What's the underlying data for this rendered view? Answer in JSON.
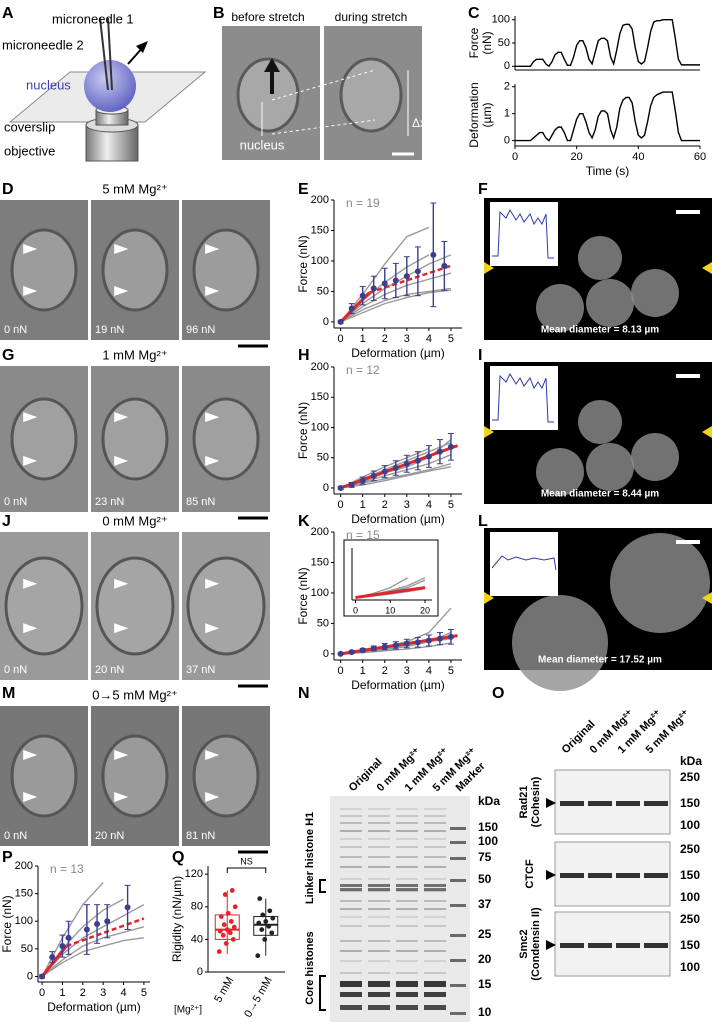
{
  "panel_labels": [
    "A",
    "B",
    "C",
    "D",
    "E",
    "F",
    "G",
    "H",
    "I",
    "J",
    "K",
    "L",
    "M",
    "N",
    "O",
    "P",
    "Q"
  ],
  "diagram_a": {
    "labels": [
      "microneedle 1",
      "microneedle 2",
      "nucleus",
      "coverslip",
      "objective"
    ]
  },
  "images_b": {
    "titles": [
      "before stretch",
      "during stretch"
    ],
    "labels": [
      "nucleus",
      "Δx"
    ]
  },
  "image_rows": [
    {
      "title": "5 mM Mg²⁺",
      "forces": [
        "0 nN",
        "19 nN",
        "96 nN"
      ]
    },
    {
      "title": "1 mM Mg²⁺",
      "forces": [
        "0 nN",
        "23 nN",
        "85 nN"
      ]
    },
    {
      "title": "0 mM Mg²⁺",
      "forces": [
        "0 nN",
        "20 nN",
        "37 nN"
      ]
    },
    {
      "title": "0→5 mM Mg²⁺",
      "forces": [
        "0 nN",
        "20 nN",
        "81 nN"
      ]
    }
  ],
  "confocal": [
    {
      "caption": "Mean diameter = 8.13 µm"
    },
    {
      "caption": "Mean diameter = 8.44 µm"
    },
    {
      "caption": "Mean diameter = 17.52 µm"
    }
  ],
  "chart_data": [
    {
      "type": "line",
      "ylabel_lines": [
        "Force",
        "(nN)"
      ],
      "xlim": [
        0,
        60
      ],
      "ylim": [
        -8,
        108
      ],
      "yticks": [
        0,
        50,
        100
      ],
      "color": "#000000",
      "x": [
        0,
        1,
        2,
        3,
        4,
        5,
        6,
        7,
        8,
        9,
        10,
        11,
        12,
        13,
        14,
        15,
        16,
        17,
        18,
        19,
        20,
        21,
        22,
        23,
        24,
        25,
        26,
        27,
        28,
        29,
        30,
        31,
        32,
        33,
        34,
        35,
        36,
        37,
        38,
        39,
        40,
        41,
        42,
        43,
        44,
        45,
        46,
        47,
        48,
        49,
        50,
        51,
        52,
        53,
        54,
        55,
        56,
        57,
        58,
        59,
        60
      ],
      "values": [
        0,
        0,
        0,
        0,
        0,
        0,
        10,
        15,
        15,
        15,
        5,
        0,
        10,
        25,
        30,
        30,
        15,
        2,
        2,
        20,
        45,
        55,
        55,
        40,
        15,
        5,
        30,
        55,
        60,
        60,
        55,
        20,
        5,
        35,
        70,
        88,
        90,
        90,
        80,
        40,
        10,
        5,
        10,
        40,
        75,
        95,
        98,
        98,
        100,
        100,
        100,
        100,
        60,
        15,
        3,
        3,
        3,
        3,
        3,
        3,
        3
      ]
    },
    {
      "type": "line",
      "ylabel_lines": [
        "Deformation",
        "(µm)"
      ],
      "xlabel": "Time (s)",
      "xlim": [
        0,
        60
      ],
      "ylim": [
        -0.2,
        2.1
      ],
      "yticks": [
        0,
        1,
        2
      ],
      "xticks": [
        0,
        20,
        40,
        60
      ],
      "color": "#000000",
      "x": [
        0,
        1,
        2,
        3,
        4,
        5,
        6,
        7,
        8,
        9,
        10,
        11,
        12,
        13,
        14,
        15,
        16,
        17,
        18,
        19,
        20,
        21,
        22,
        23,
        24,
        25,
        26,
        27,
        28,
        29,
        30,
        31,
        32,
        33,
        34,
        35,
        36,
        37,
        38,
        39,
        40,
        41,
        42,
        43,
        44,
        45,
        46,
        47,
        48,
        49,
        50,
        51,
        52,
        53,
        54,
        55,
        56,
        57,
        58,
        59,
        60
      ],
      "values": [
        0,
        0,
        0,
        0,
        0,
        0,
        0.1,
        0.2,
        0.3,
        0.3,
        0.1,
        0,
        0.2,
        0.4,
        0.5,
        0.5,
        0.3,
        0,
        0,
        0.4,
        0.8,
        1,
        1,
        0.7,
        0.3,
        0.1,
        0.4,
        0.9,
        1.1,
        1.1,
        1,
        0.4,
        0.1,
        0.5,
        1.2,
        1.5,
        1.6,
        1.6,
        1.4,
        0.7,
        0.2,
        0.1,
        0.2,
        0.7,
        1.3,
        1.6,
        1.7,
        1.75,
        1.8,
        1.8,
        1.8,
        1.8,
        1.1,
        0.3,
        0,
        0,
        0,
        0,
        0,
        0,
        0
      ]
    },
    {
      "type": "line",
      "annotation": "n = 19",
      "xlabel": "Deformation (µm)",
      "ylabel": "Force (nN)",
      "xlim": [
        -0.3,
        5.5
      ],
      "ylim": [
        -10,
        200
      ],
      "xticks": [
        0,
        1,
        2,
        3,
        4,
        5
      ],
      "yticks": [
        0,
        50,
        100,
        150,
        200
      ],
      "trace_color": "#9a9a9a",
      "trace_x": [
        0,
        1,
        2,
        3,
        4,
        5
      ],
      "traces": [
        [
          0,
          45,
          95,
          140,
          155,
          null
        ],
        [
          0,
          30,
          55,
          75,
          95,
          110
        ],
        [
          0,
          25,
          45,
          60,
          70,
          80
        ],
        [
          0,
          20,
          35,
          45,
          50,
          55
        ],
        [
          0,
          35,
          65,
          90,
          110,
          null
        ],
        [
          0,
          15,
          30,
          40,
          48,
          52
        ]
      ],
      "color": "#3b3f8c",
      "x": [
        0,
        0.5,
        1,
        1.5,
        2,
        2.5,
        3,
        3.5,
        4.2,
        4.7
      ],
      "values": [
        0,
        22,
        43,
        55,
        63,
        68,
        75,
        83,
        110,
        92
      ],
      "errors": [
        2,
        8,
        15,
        20,
        25,
        28,
        32,
        40,
        85,
        40
      ],
      "fit_color": "#e0252b",
      "fit_solid_x": [
        0,
        1.3
      ],
      "fit_solid_values": [
        0,
        48
      ],
      "fit_dashed_x": [
        1.3,
        5
      ],
      "fit_dashed_values": [
        48,
        92
      ]
    },
    {
      "type": "line",
      "annotation": "n = 12",
      "xlabel": "Deformation (µm)",
      "ylabel": "Force (nN)",
      "xlim": [
        -0.3,
        5.5
      ],
      "ylim": [
        -10,
        200
      ],
      "xticks": [
        0,
        1,
        2,
        3,
        4,
        5
      ],
      "yticks": [
        0,
        50,
        100,
        150,
        200
      ],
      "trace_color": "#9a9a9a",
      "trace_x": [
        0,
        1,
        2,
        3,
        4,
        5
      ],
      "traces": [
        [
          0,
          12,
          25,
          35,
          50,
          80
        ],
        [
          0,
          10,
          20,
          30,
          40,
          55
        ],
        [
          0,
          8,
          15,
          22,
          30,
          40
        ],
        [
          0,
          15,
          30,
          45,
          60,
          75
        ],
        [
          0,
          5,
          12,
          20,
          28,
          35
        ],
        [
          0,
          18,
          35,
          50,
          65,
          null
        ]
      ],
      "color": "#3b3f8c",
      "x": [
        0,
        0.5,
        1,
        1.5,
        2,
        2.5,
        3,
        3.5,
        4,
        4.5,
        5
      ],
      "values": [
        0,
        5,
        12,
        20,
        27,
        33,
        40,
        45,
        52,
        60,
        68
      ],
      "errors": [
        2,
        4,
        6,
        8,
        10,
        12,
        14,
        15,
        18,
        20,
        22
      ],
      "fit_color": "#e0252b",
      "fit_solid_x": [
        0,
        5.3
      ],
      "fit_solid_values": [
        0,
        70
      ]
    },
    {
      "type": "line",
      "annotation": "n = 15",
      "xlabel": "Deformation (µm)",
      "ylabel": "Force (nN)",
      "xlim": [
        -0.3,
        5.5
      ],
      "ylim": [
        -10,
        200
      ],
      "xticks": [
        0,
        1,
        2,
        3,
        4,
        5
      ],
      "yticks": [
        0,
        50,
        100,
        150,
        200
      ],
      "trace_color": "#9a9a9a",
      "trace_x": [
        0,
        1,
        2,
        3,
        4,
        5
      ],
      "traces": [
        [
          0,
          3,
          7,
          12,
          20,
          35
        ],
        [
          0,
          5,
          10,
          15,
          22,
          30
        ],
        [
          0,
          2,
          5,
          8,
          12,
          18
        ],
        [
          0,
          6,
          12,
          20,
          35,
          75
        ],
        [
          0,
          4,
          9,
          14,
          20,
          25
        ]
      ],
      "color": "#3b3f8c",
      "x": [
        0,
        0.5,
        1,
        1.5,
        2,
        2.5,
        3,
        3.5,
        4,
        4.5,
        5
      ],
      "values": [
        0,
        3,
        6,
        9,
        12,
        14,
        17,
        19,
        22,
        25,
        28
      ],
      "errors": [
        1,
        2,
        3,
        4,
        5,
        6,
        7,
        8,
        9,
        10,
        12
      ],
      "fit_color": "#e0252b",
      "fit_solid_x": [
        0,
        5.3
      ],
      "fit_solid_values": [
        0,
        30
      ]
    },
    {
      "type": "line",
      "xlim": [
        -1,
        22
      ],
      "ylim": [
        -5,
        100
      ],
      "xticks": [
        0,
        10,
        20
      ],
      "trace_color": "#9a9a9a",
      "trace_x": [
        0,
        5,
        10,
        15,
        20
      ],
      "traces": [
        [
          0,
          5,
          12,
          20,
          35
        ],
        [
          0,
          8,
          20,
          40,
          null
        ],
        [
          0,
          3,
          7,
          12,
          18
        ],
        [
          0,
          6,
          14,
          24,
          40
        ]
      ],
      "fit_color": "#e0252b",
      "fit_solid_x": [
        0,
        20
      ],
      "fit_solid_values": [
        0,
        20
      ]
    },
    {
      "type": "line",
      "annotation": "n = 13",
      "xlabel": "Deformation (µm)",
      "ylabel": "Force (nN)",
      "xlim": [
        -0.2,
        5.3
      ],
      "ylim": [
        -10,
        200
      ],
      "xticks": [
        0,
        1,
        2,
        3,
        4,
        5
      ],
      "yticks": [
        0,
        50,
        100,
        150,
        200
      ],
      "trace_color": "#9a9a9a",
      "trace_x": [
        0,
        1,
        2,
        3,
        4,
        5
      ],
      "traces": [
        [
          0,
          70,
          130,
          170,
          null,
          null
        ],
        [
          0,
          50,
          90,
          120,
          140,
          null
        ],
        [
          0,
          40,
          70,
          90,
          110,
          130
        ],
        [
          0,
          30,
          55,
          70,
          80,
          90
        ],
        [
          0,
          25,
          45,
          55,
          65,
          70
        ]
      ],
      "color": "#3b3f8c",
      "x": [
        0,
        0.5,
        1,
        1.3,
        2.2,
        2.7,
        3.2,
        4.2
      ],
      "values": [
        0,
        35,
        55,
        70,
        85,
        95,
        100,
        125
      ],
      "errors": [
        3,
        10,
        20,
        30,
        45,
        35,
        30,
        40
      ],
      "fit_color": "#e0252b",
      "fit_solid_x": [
        0,
        1.2
      ],
      "fit_solid_values": [
        0,
        55
      ],
      "fit_dashed_x": [
        1.2,
        5
      ],
      "fit_dashed_values": [
        55,
        105
      ]
    },
    {
      "type": "box",
      "ylabel": "Rigidity (nN/µm)",
      "xlabel": "[Mg²⁺]",
      "annotation": "NS",
      "categories": [
        "5 mM",
        "0→5 mM"
      ],
      "ylim": [
        0,
        130
      ],
      "yticks": [
        0,
        40,
        80,
        120
      ],
      "boxes": [
        {
          "color": "#e0252b",
          "min": 22,
          "q1": 40,
          "median": 52,
          "q3": 70,
          "max": 100,
          "points": [
            25,
            35,
            40,
            45,
            48,
            50,
            52,
            55,
            58,
            62,
            68,
            72,
            80,
            95,
            100
          ]
        },
        {
          "color": "#222222",
          "min": 20,
          "q1": 45,
          "median": 58,
          "q3": 68,
          "max": 90,
          "points": [
            20,
            40,
            48,
            52,
            56,
            60,
            62,
            66,
            70,
            75,
            90
          ]
        }
      ]
    }
  ],
  "gel_p": {
    "lanes": [
      "Original",
      "0 mM Mg²⁺",
      "1 mM Mg²⁺",
      "5 mM Mg²⁺",
      "Marker"
    ],
    "unit": "kDa",
    "markers": [
      "150",
      "100",
      "75",
      "50",
      "37",
      "25",
      "20",
      "15",
      "10"
    ],
    "labels": [
      "Linker histone H1",
      "Core histones"
    ]
  },
  "blot_q": {
    "lanes": [
      "Original",
      "0 mM Mg²⁺",
      "1 mM Mg²⁺",
      "5 mM Mg²⁺"
    ],
    "unit": "kDa",
    "blots": [
      {
        "label": [
          "Rad21",
          "(Cohesin)"
        ],
        "markers": [
          "250",
          "150",
          "100"
        ]
      },
      {
        "label": [
          "CTCF"
        ],
        "markers": [
          "250",
          "150",
          "100"
        ]
      },
      {
        "label": [
          "Smc2",
          "(Condensin II)"
        ],
        "markers": [
          "250",
          "150",
          "100"
        ]
      }
    ]
  }
}
